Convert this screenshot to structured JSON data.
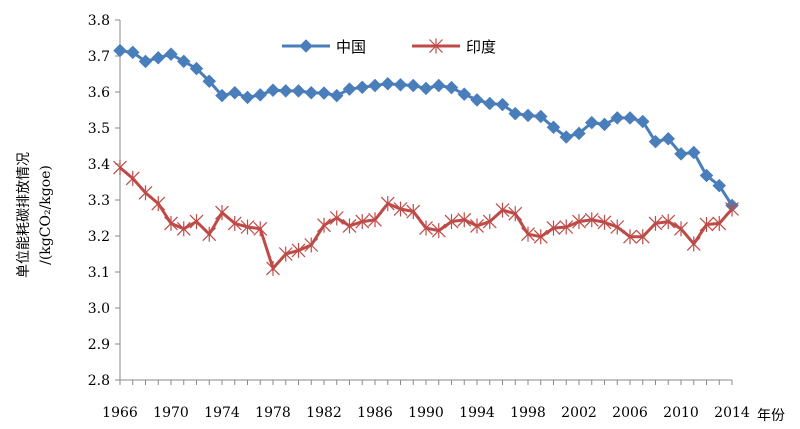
{
  "chart_data": {
    "type": "line",
    "title": "",
    "xlabel": "年份",
    "ylabel": "单位能耗碳排放情况",
    "ylabel_unit": "/(kgCO₂/kgoe)",
    "ylim": [
      2.8,
      3.8
    ],
    "yticks": [
      "3.8",
      "3.7",
      "3.6",
      "3.5",
      "3.4",
      "3.3",
      "3.2",
      "3.1",
      "3.0",
      "2.9",
      "2.8"
    ],
    "xlim": [
      1966,
      2014
    ],
    "xticks": [
      "1966",
      "1970",
      "1974",
      "1978",
      "1982",
      "1986",
      "1990",
      "1994",
      "1998",
      "2002",
      "2006",
      "2010",
      "2014"
    ],
    "legend_position": "top-center",
    "grid": false,
    "x": [
      1966,
      1967,
      1968,
      1969,
      1970,
      1971,
      1972,
      1973,
      1974,
      1975,
      1976,
      1977,
      1978,
      1979,
      1980,
      1981,
      1982,
      1983,
      1984,
      1985,
      1986,
      1987,
      1988,
      1989,
      1990,
      1991,
      1992,
      1993,
      1994,
      1995,
      1996,
      1997,
      1998,
      1999,
      2000,
      2001,
      2002,
      2003,
      2004,
      2005,
      2006,
      2007,
      2008,
      2009,
      2010,
      2011,
      2012,
      2013,
      2014
    ],
    "series": [
      {
        "name": "中国",
        "color": "#4a7ebb",
        "marker": "diamond",
        "values": [
          3.715,
          3.71,
          3.685,
          3.695,
          3.705,
          3.685,
          3.665,
          3.63,
          3.59,
          3.598,
          3.585,
          3.592,
          3.605,
          3.603,
          3.603,
          3.598,
          3.597,
          3.59,
          3.608,
          3.613,
          3.618,
          3.623,
          3.62,
          3.618,
          3.61,
          3.618,
          3.612,
          3.594,
          3.578,
          3.568,
          3.565,
          3.54,
          3.535,
          3.532,
          3.502,
          3.475,
          3.485,
          3.515,
          3.51,
          3.528,
          3.528,
          3.518,
          3.462,
          3.47,
          3.428,
          3.432,
          3.368,
          3.34,
          3.285
        ]
      },
      {
        "name": "印度",
        "color": "#be4b48",
        "marker": "star",
        "values": [
          3.39,
          3.36,
          3.32,
          3.29,
          3.235,
          3.22,
          3.24,
          3.205,
          3.265,
          3.235,
          3.225,
          3.22,
          3.11,
          3.15,
          3.16,
          3.175,
          3.23,
          3.25,
          3.228,
          3.24,
          3.245,
          3.29,
          3.275,
          3.268,
          3.222,
          3.215,
          3.24,
          3.245,
          3.228,
          3.24,
          3.272,
          3.262,
          3.205,
          3.198,
          3.222,
          3.225,
          3.24,
          3.245,
          3.238,
          3.225,
          3.198,
          3.198,
          3.235,
          3.24,
          3.22,
          3.178,
          3.232,
          3.235,
          3.275
        ]
      }
    ]
  }
}
